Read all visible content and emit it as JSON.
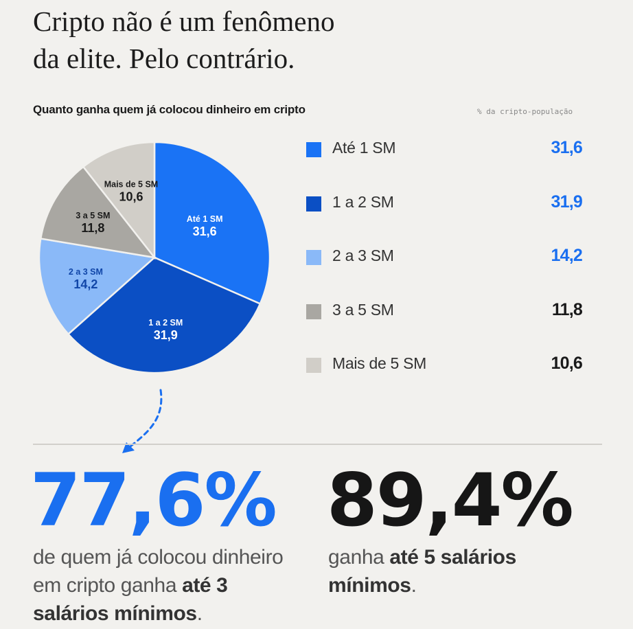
{
  "headline": {
    "line1": "Cripto não é um fenômeno",
    "line2": "da elite. Pelo contrário."
  },
  "chart_data": {
    "type": "pie",
    "title": "Quanto ganha quem já colocou dinheiro em cripto",
    "unit": "% da cripto-população",
    "slices": [
      {
        "label": "Até 1 SM",
        "value": 31.6,
        "display": "31,6",
        "color": "#1a73f5",
        "label_color": "#ffffff",
        "legend_value_color": "#1a6ff0"
      },
      {
        "label": "1 a 2 SM",
        "value": 31.9,
        "display": "31,9",
        "color": "#0b4fc4",
        "label_color": "#ffffff",
        "legend_value_color": "#1a6ff0"
      },
      {
        "label": "2 a 3 SM",
        "value": 14.2,
        "display": "14,2",
        "color": "#8ab9f8",
        "label_color": "#1146a8",
        "legend_value_color": "#1a6ff0"
      },
      {
        "label": "3 a 5 SM",
        "value": 11.8,
        "display": "11,8",
        "color": "#a9a7a2",
        "label_color": "#1a1a1a",
        "legend_value_color": "#1a1a1a"
      },
      {
        "label": "Mais de 5 SM",
        "value": 10.6,
        "display": "10,6",
        "color": "#d1cec8",
        "label_color": "#1a1a1a",
        "legend_value_color": "#1a1a1a"
      }
    ]
  },
  "stats": [
    {
      "number": "77,6%",
      "color": "#1a6ff0",
      "pre": "de quem já colocou dinheiro em cripto ganha ",
      "bold": "até 3 salários mínimos",
      "post": "."
    },
    {
      "number": "89,4%",
      "color": "#161616",
      "pre": "ganha ",
      "bold": "até 5 salários mínimos",
      "post": "."
    }
  ]
}
